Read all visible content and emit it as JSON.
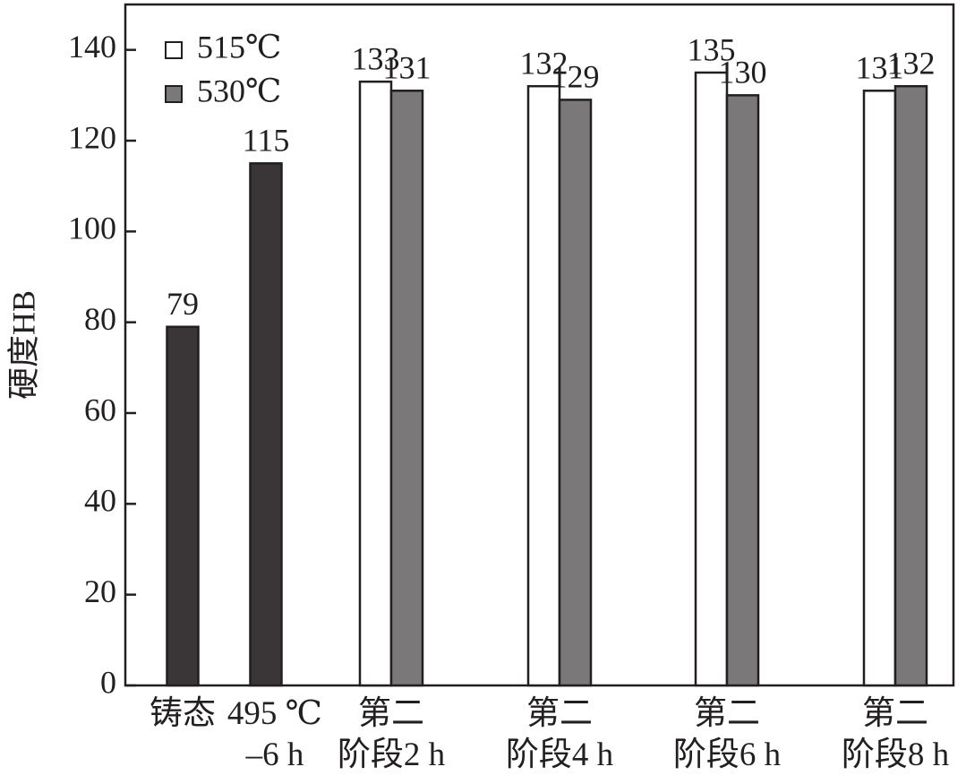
{
  "chart_data": {
    "type": "bar",
    "y_label": "硬度HB",
    "categories": [
      "铸态",
      "495 ℃\n–6 h",
      "第二\n阶段2 h",
      "第二\n阶段4 h",
      "第二\n阶段6 h",
      "第二\n阶段8 h"
    ],
    "series": [
      {
        "color": "#3a3536",
        "values": [
          79,
          115,
          null,
          null,
          null,
          null
        ]
      },
      {
        "name": "515℃",
        "color": "#ffffff",
        "values": [
          null,
          null,
          133,
          132,
          135,
          131
        ]
      },
      {
        "name": "530℃",
        "color": "#7a7878",
        "values": [
          null,
          null,
          131,
          129,
          130,
          132
        ]
      }
    ],
    "ylim": [
      0,
      150
    ],
    "yticks": [
      0,
      20,
      40,
      60,
      80,
      100,
      120,
      140
    ],
    "legend": "top-left"
  }
}
